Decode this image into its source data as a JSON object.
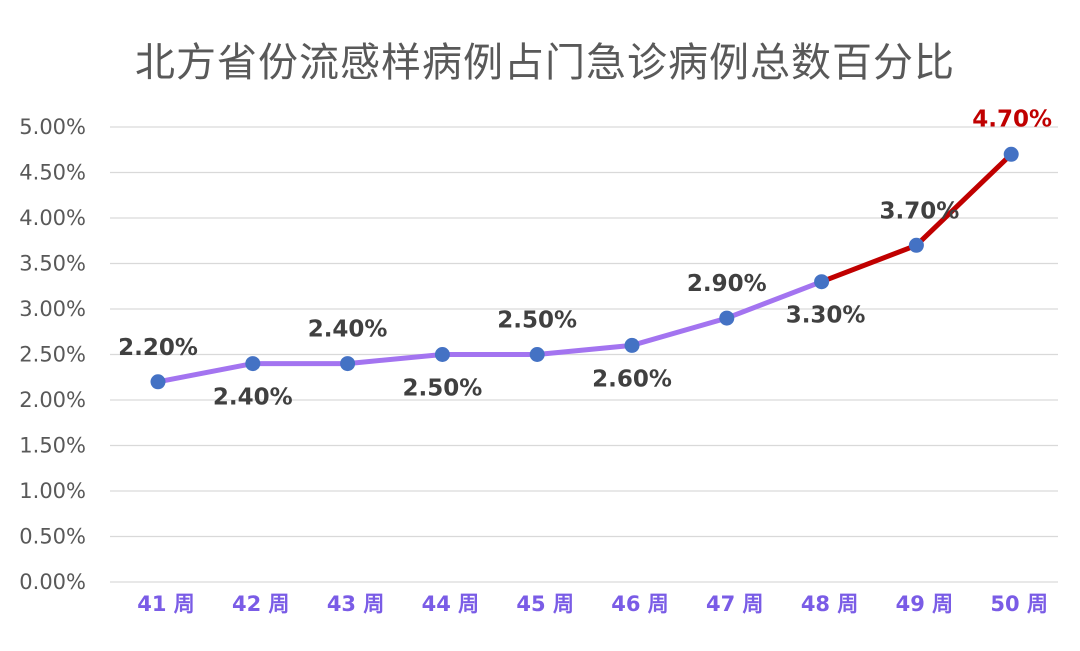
{
  "chart_data": {
    "type": "line",
    "title": "北方省份流感样病例占门急诊病例总数百分比",
    "xlabel": "",
    "ylabel": "",
    "categories": [
      "41 周",
      "42 周",
      "43 周",
      "44 周",
      "45 周",
      "46 周",
      "47 周",
      "48 周",
      "49 周",
      "50 周"
    ],
    "series": [
      {
        "values": [
          2.2,
          2.4,
          2.4,
          2.5,
          2.5,
          2.6,
          2.9,
          3.3,
          3.7,
          4.7
        ]
      }
    ],
    "data_labels": [
      "2.20%",
      "2.40%",
      "2.40%",
      "2.50%",
      "2.50%",
      "2.60%",
      "2.90%",
      "3.30%",
      "3.70%",
      "4.70%"
    ],
    "yticks": [
      "0.00%",
      "0.50%",
      "1.00%",
      "1.50%",
      "2.00%",
      "2.50%",
      "3.00%",
      "3.50%",
      "4.00%",
      "4.50%",
      "5.00%"
    ],
    "ylim": [
      0,
      5.0
    ],
    "grid": true,
    "legend": "none",
    "highlight_from_index": 7,
    "colors": {
      "line": "#A374F0",
      "highlight_line": "#C00000",
      "marker": "#4472C4",
      "x_tick": "#7A5CE6",
      "y_tick": "#595959",
      "label": "#404040",
      "highlight_label": "#C00000",
      "grid": "#D9D9D9",
      "title": "#595959"
    }
  }
}
